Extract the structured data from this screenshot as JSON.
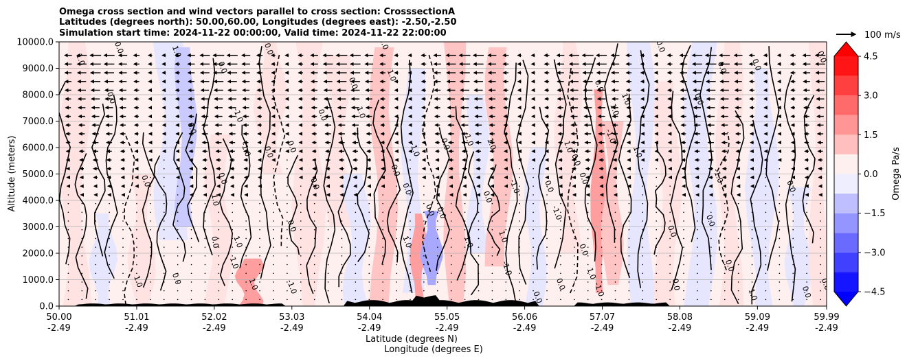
{
  "title_lines": [
    "Omega cross section and wind vectors parallel to cross section: CrosssectionA",
    "Latitudes (degrees north): 50.00,60.00, Longitudes (degrees east): -2.50,-2.50",
    "Simulation start time: 2024-11-22 00:00:00, Valid time: 2024-11-22 22:00:00"
  ],
  "chart_data": {
    "type": "heatmap",
    "title": "Omega cross section and wind vectors parallel to cross section: CrosssectionA",
    "xlabel": "Latitude (degrees N)",
    "xlabel2": "Longitude (degrees E)",
    "ylabel": "Altitude (meters)",
    "xlim": [
      50.0,
      59.99
    ],
    "ylim": [
      0,
      10000
    ],
    "y_ticks": [
      0,
      1000,
      2000,
      3000,
      4000,
      5000,
      6000,
      7000,
      8000,
      9000,
      10000
    ],
    "y_tick_labels": [
      "0.0",
      "1000.0",
      "2000.0",
      "3000.0",
      "4000.0",
      "5000.0",
      "6000.0",
      "7000.0",
      "8000.0",
      "9000.0",
      "10000.0"
    ],
    "x_ticks": [
      50.0,
      51.01,
      52.02,
      53.03,
      54.04,
      55.05,
      56.06,
      57.07,
      58.08,
      59.09,
      59.99
    ],
    "x_tick_labels": [
      "50.00",
      "51.01",
      "52.02",
      "53.03",
      "54.04",
      "55.05",
      "56.06",
      "57.07",
      "58.08",
      "59.09",
      "59.99"
    ],
    "x_tick_labels2": [
      "-2.49",
      "-2.49",
      "-2.49",
      "-2.49",
      "-2.49",
      "-2.49",
      "-2.49",
      "-2.49",
      "-2.49",
      "-2.49",
      "-2.49"
    ],
    "grid_y": true,
    "colorbar": {
      "label": "Omega Pa/s",
      "range": [
        -5.25,
        5.25
      ],
      "ticks": [
        4.5,
        3.0,
        1.5,
        0.0,
        -1.5,
        -3.0,
        -4.5
      ],
      "tick_labels": [
        "4.5",
        "3.0",
        "1.5",
        "0.0",
        "−1.5",
        "−3.0",
        "−4.5"
      ],
      "levels": [
        -5.25,
        -4.5,
        -3.75,
        -3.0,
        -2.25,
        -1.5,
        -0.75,
        0.0,
        0.75,
        1.5,
        2.25,
        3.0,
        3.75,
        4.5,
        5.25
      ]
    },
    "reference_vector": {
      "label": "100 m/s",
      "value": 100
    },
    "contour_label_samples": [
      {
        "text": "1.0",
        "x": 50.25,
        "y": 9300
      },
      {
        "text": "0.0",
        "x": 50.75,
        "y": 9750
      },
      {
        "text": "0.0",
        "x": 50.65,
        "y": 7850
      },
      {
        "text": "1.0",
        "x": 51.5,
        "y": 9600
      },
      {
        "text": "0.0",
        "x": 52.1,
        "y": 9000
      },
      {
        "text": "0.0",
        "x": 52.7,
        "y": 9700
      },
      {
        "text": "-1.0",
        "x": 52.3,
        "y": 7200
      },
      {
        "text": "0.0",
        "x": 51.7,
        "y": 6700
      },
      {
        "text": "-1.0",
        "x": 52.4,
        "y": 5900
      },
      {
        "text": "0.0",
        "x": 52.7,
        "y": 5800
      },
      {
        "text": "0.0",
        "x": 53.0,
        "y": 6000
      },
      {
        "text": "0.0",
        "x": 51.1,
        "y": 4700
      },
      {
        "text": "1.0",
        "x": 52.0,
        "y": 4000
      },
      {
        "text": "0.0",
        "x": 52.1,
        "y": 4800
      },
      {
        "text": "0.0",
        "x": 52.0,
        "y": 2400
      },
      {
        "text": "1.0",
        "x": 52.3,
        "y": 2400
      },
      {
        "text": "1.0",
        "x": 51.0,
        "y": 900
      },
      {
        "text": "0.0",
        "x": 51.5,
        "y": 1000
      },
      {
        "text": "1.0",
        "x": 52.25,
        "y": 1600
      },
      {
        "text": "1.0",
        "x": 52.5,
        "y": 800
      },
      {
        "text": "-1.0",
        "x": 53.0,
        "y": 700
      },
      {
        "text": "0.0",
        "x": 53.0,
        "y": 3000
      },
      {
        "text": "0.0",
        "x": 53.3,
        "y": 4600
      },
      {
        "text": "0.0",
        "x": 53.4,
        "y": 7200
      },
      {
        "text": "1.0",
        "x": 53.9,
        "y": 7300
      },
      {
        "text": "0.0",
        "x": 53.8,
        "y": 8400
      },
      {
        "text": "1.0",
        "x": 54.3,
        "y": 8700
      },
      {
        "text": "1.0",
        "x": 54.2,
        "y": 9900
      },
      {
        "text": "0.0",
        "x": 54.35,
        "y": 5100
      },
      {
        "text": "0.0",
        "x": 54.5,
        "y": 4400
      },
      {
        "text": "-1.0",
        "x": 54.6,
        "y": 5900
      },
      {
        "text": "0.0",
        "x": 54.8,
        "y": 3600
      },
      {
        "text": "0.0",
        "x": 55.0,
        "y": 6100
      },
      {
        "text": "1.0",
        "x": 54.5,
        "y": 2400
      },
      {
        "text": "0.0",
        "x": 54.95,
        "y": 3500
      },
      {
        "text": "-1.0",
        "x": 55.3,
        "y": 6300
      },
      {
        "text": "1.0",
        "x": 55.6,
        "y": 6100
      },
      {
        "text": "0.0",
        "x": 55.55,
        "y": 4100
      },
      {
        "text": "1.0",
        "x": 55.3,
        "y": 2400
      },
      {
        "text": "-1.0",
        "x": 55.9,
        "y": 4500
      },
      {
        "text": "0.0",
        "x": 56.35,
        "y": 4500
      },
      {
        "text": "-1.0",
        "x": 56.45,
        "y": 3500
      },
      {
        "text": "1.0",
        "x": 55.75,
        "y": 2600
      },
      {
        "text": "-1.0",
        "x": 55.8,
        "y": 1400
      },
      {
        "text": "0.0",
        "x": 56.5,
        "y": 800
      },
      {
        "text": "0.0",
        "x": 56.2,
        "y": 300
      },
      {
        "text": "1.0",
        "x": 56.6,
        "y": 6000
      },
      {
        "text": "0.0",
        "x": 56.7,
        "y": 5500
      },
      {
        "text": "0.0",
        "x": 57.0,
        "y": 8300
      },
      {
        "text": "1.0",
        "x": 57.2,
        "y": 7400
      },
      {
        "text": "1.0",
        "x": 57.35,
        "y": 7800
      },
      {
        "text": "-1.0",
        "x": 57.15,
        "y": 6400
      },
      {
        "text": "0.0",
        "x": 56.8,
        "y": 4800
      },
      {
        "text": "0.0",
        "x": 56.8,
        "y": 2100
      },
      {
        "text": "1.0",
        "x": 56.9,
        "y": 1200
      },
      {
        "text": "-1.0",
        "x": 57.0,
        "y": 600
      },
      {
        "text": "1.0",
        "x": 57.5,
        "y": 5800
      },
      {
        "text": "0.0",
        "x": 57.8,
        "y": 9800
      },
      {
        "text": "0.0",
        "x": 58.3,
        "y": 7800
      },
      {
        "text": "0.0",
        "x": 58.6,
        "y": 9000
      },
      {
        "text": "0.0",
        "x": 59.05,
        "y": 9100
      },
      {
        "text": "-1.0",
        "x": 58.55,
        "y": 4900
      },
      {
        "text": "0.0",
        "x": 58.45,
        "y": 3200
      },
      {
        "text": "0.0",
        "x": 57.95,
        "y": 2800
      },
      {
        "text": "0.0",
        "x": 58.7,
        "y": 1500
      },
      {
        "text": "0.0",
        "x": 59.5,
        "y": 4500
      },
      {
        "text": "0.0",
        "x": 59.9,
        "y": 9400
      },
      {
        "text": "0.0",
        "x": 59.7,
        "y": 500
      },
      {
        "text": "0.0",
        "x": 58.0,
        "y": 800
      },
      {
        "text": "1.0",
        "x": 59.0,
        "y": 400
      },
      {
        "text": "0.0",
        "x": 59.95,
        "y": 800
      }
    ]
  }
}
